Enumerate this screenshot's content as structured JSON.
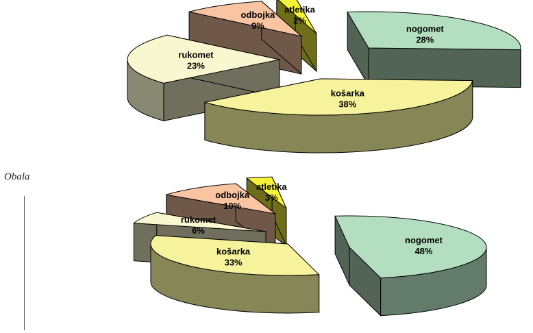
{
  "caption": "Obala",
  "colors": {
    "nogomet": "#b3dfc0",
    "kosarka": "#f6f39c",
    "rukomet": "#f9f7cf",
    "odbojka": "#f8c4a2",
    "atletika": "#f5f23a",
    "outline": "#000000"
  },
  "chart_data": [
    {
      "type": "pie",
      "title": "",
      "slices": [
        {
          "key": "nogomet",
          "label": "nogomet",
          "value": 28,
          "display": "28%"
        },
        {
          "key": "kosarka",
          "label": "košarka",
          "value": 38,
          "display": "38%"
        },
        {
          "key": "rukomet",
          "label": "rukomet",
          "value": 23,
          "display": "23%"
        },
        {
          "key": "odbojka",
          "label": "odbojka",
          "value": 9,
          "display": "9%"
        },
        {
          "key": "atletika",
          "label": "atletika",
          "value": 2,
          "display": "2%"
        }
      ]
    },
    {
      "type": "pie",
      "title": "",
      "slices": [
        {
          "key": "nogomet",
          "label": "nogomet",
          "value": 48,
          "display": "48%"
        },
        {
          "key": "kosarka",
          "label": "košarka",
          "value": 33,
          "display": "33%"
        },
        {
          "key": "rukomet",
          "label": "rukomet",
          "value": 6,
          "display": "6%"
        },
        {
          "key": "odbojka",
          "label": "odbojka",
          "value": 10,
          "display": "10%"
        },
        {
          "key": "atletika",
          "label": "atletika",
          "value": 3,
          "display": "3%"
        }
      ]
    }
  ]
}
